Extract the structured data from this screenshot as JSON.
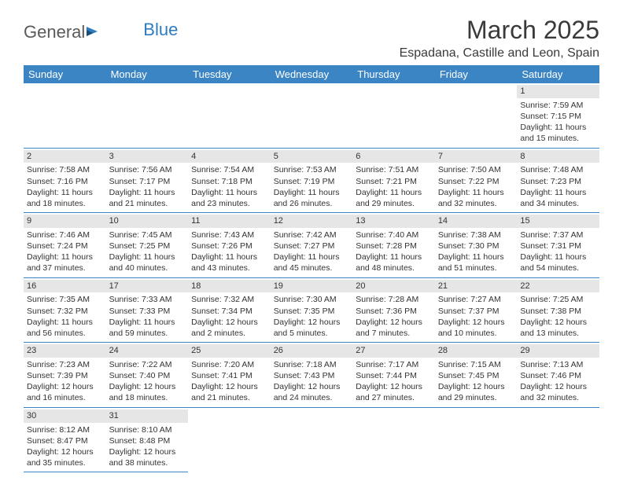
{
  "logo": {
    "text1": "General",
    "text2": "Blue"
  },
  "title": "March 2025",
  "location": "Espadana, Castille and Leon, Spain",
  "header_bg": "#3b85c4",
  "header_fg": "#ffffff",
  "daynum_bg": "#e6e6e6",
  "border_color": "#3b85c4",
  "text_color": "#333333",
  "font_size_title": 32,
  "font_size_location": 16,
  "font_size_header": 13,
  "font_size_cell": 10.5,
  "day_headers": [
    "Sunday",
    "Monday",
    "Tuesday",
    "Wednesday",
    "Thursday",
    "Friday",
    "Saturday"
  ],
  "weeks": [
    [
      {
        "empty": true
      },
      {
        "empty": true
      },
      {
        "empty": true
      },
      {
        "empty": true
      },
      {
        "empty": true
      },
      {
        "empty": true
      },
      {
        "day": "1",
        "sunrise": "Sunrise: 7:59 AM",
        "sunset": "Sunset: 7:15 PM",
        "dl1": "Daylight: 11 hours",
        "dl2": "and 15 minutes."
      }
    ],
    [
      {
        "day": "2",
        "sunrise": "Sunrise: 7:58 AM",
        "sunset": "Sunset: 7:16 PM",
        "dl1": "Daylight: 11 hours",
        "dl2": "and 18 minutes."
      },
      {
        "day": "3",
        "sunrise": "Sunrise: 7:56 AM",
        "sunset": "Sunset: 7:17 PM",
        "dl1": "Daylight: 11 hours",
        "dl2": "and 21 minutes."
      },
      {
        "day": "4",
        "sunrise": "Sunrise: 7:54 AM",
        "sunset": "Sunset: 7:18 PM",
        "dl1": "Daylight: 11 hours",
        "dl2": "and 23 minutes."
      },
      {
        "day": "5",
        "sunrise": "Sunrise: 7:53 AM",
        "sunset": "Sunset: 7:19 PM",
        "dl1": "Daylight: 11 hours",
        "dl2": "and 26 minutes."
      },
      {
        "day": "6",
        "sunrise": "Sunrise: 7:51 AM",
        "sunset": "Sunset: 7:21 PM",
        "dl1": "Daylight: 11 hours",
        "dl2": "and 29 minutes."
      },
      {
        "day": "7",
        "sunrise": "Sunrise: 7:50 AM",
        "sunset": "Sunset: 7:22 PM",
        "dl1": "Daylight: 11 hours",
        "dl2": "and 32 minutes."
      },
      {
        "day": "8",
        "sunrise": "Sunrise: 7:48 AM",
        "sunset": "Sunset: 7:23 PM",
        "dl1": "Daylight: 11 hours",
        "dl2": "and 34 minutes."
      }
    ],
    [
      {
        "day": "9",
        "sunrise": "Sunrise: 7:46 AM",
        "sunset": "Sunset: 7:24 PM",
        "dl1": "Daylight: 11 hours",
        "dl2": "and 37 minutes."
      },
      {
        "day": "10",
        "sunrise": "Sunrise: 7:45 AM",
        "sunset": "Sunset: 7:25 PM",
        "dl1": "Daylight: 11 hours",
        "dl2": "and 40 minutes."
      },
      {
        "day": "11",
        "sunrise": "Sunrise: 7:43 AM",
        "sunset": "Sunset: 7:26 PM",
        "dl1": "Daylight: 11 hours",
        "dl2": "and 43 minutes."
      },
      {
        "day": "12",
        "sunrise": "Sunrise: 7:42 AM",
        "sunset": "Sunset: 7:27 PM",
        "dl1": "Daylight: 11 hours",
        "dl2": "and 45 minutes."
      },
      {
        "day": "13",
        "sunrise": "Sunrise: 7:40 AM",
        "sunset": "Sunset: 7:28 PM",
        "dl1": "Daylight: 11 hours",
        "dl2": "and 48 minutes."
      },
      {
        "day": "14",
        "sunrise": "Sunrise: 7:38 AM",
        "sunset": "Sunset: 7:30 PM",
        "dl1": "Daylight: 11 hours",
        "dl2": "and 51 minutes."
      },
      {
        "day": "15",
        "sunrise": "Sunrise: 7:37 AM",
        "sunset": "Sunset: 7:31 PM",
        "dl1": "Daylight: 11 hours",
        "dl2": "and 54 minutes."
      }
    ],
    [
      {
        "day": "16",
        "sunrise": "Sunrise: 7:35 AM",
        "sunset": "Sunset: 7:32 PM",
        "dl1": "Daylight: 11 hours",
        "dl2": "and 56 minutes."
      },
      {
        "day": "17",
        "sunrise": "Sunrise: 7:33 AM",
        "sunset": "Sunset: 7:33 PM",
        "dl1": "Daylight: 11 hours",
        "dl2": "and 59 minutes."
      },
      {
        "day": "18",
        "sunrise": "Sunrise: 7:32 AM",
        "sunset": "Sunset: 7:34 PM",
        "dl1": "Daylight: 12 hours",
        "dl2": "and 2 minutes."
      },
      {
        "day": "19",
        "sunrise": "Sunrise: 7:30 AM",
        "sunset": "Sunset: 7:35 PM",
        "dl1": "Daylight: 12 hours",
        "dl2": "and 5 minutes."
      },
      {
        "day": "20",
        "sunrise": "Sunrise: 7:28 AM",
        "sunset": "Sunset: 7:36 PM",
        "dl1": "Daylight: 12 hours",
        "dl2": "and 7 minutes."
      },
      {
        "day": "21",
        "sunrise": "Sunrise: 7:27 AM",
        "sunset": "Sunset: 7:37 PM",
        "dl1": "Daylight: 12 hours",
        "dl2": "and 10 minutes."
      },
      {
        "day": "22",
        "sunrise": "Sunrise: 7:25 AM",
        "sunset": "Sunset: 7:38 PM",
        "dl1": "Daylight: 12 hours",
        "dl2": "and 13 minutes."
      }
    ],
    [
      {
        "day": "23",
        "sunrise": "Sunrise: 7:23 AM",
        "sunset": "Sunset: 7:39 PM",
        "dl1": "Daylight: 12 hours",
        "dl2": "and 16 minutes."
      },
      {
        "day": "24",
        "sunrise": "Sunrise: 7:22 AM",
        "sunset": "Sunset: 7:40 PM",
        "dl1": "Daylight: 12 hours",
        "dl2": "and 18 minutes."
      },
      {
        "day": "25",
        "sunrise": "Sunrise: 7:20 AM",
        "sunset": "Sunset: 7:41 PM",
        "dl1": "Daylight: 12 hours",
        "dl2": "and 21 minutes."
      },
      {
        "day": "26",
        "sunrise": "Sunrise: 7:18 AM",
        "sunset": "Sunset: 7:43 PM",
        "dl1": "Daylight: 12 hours",
        "dl2": "and 24 minutes."
      },
      {
        "day": "27",
        "sunrise": "Sunrise: 7:17 AM",
        "sunset": "Sunset: 7:44 PM",
        "dl1": "Daylight: 12 hours",
        "dl2": "and 27 minutes."
      },
      {
        "day": "28",
        "sunrise": "Sunrise: 7:15 AM",
        "sunset": "Sunset: 7:45 PM",
        "dl1": "Daylight: 12 hours",
        "dl2": "and 29 minutes."
      },
      {
        "day": "29",
        "sunrise": "Sunrise: 7:13 AM",
        "sunset": "Sunset: 7:46 PM",
        "dl1": "Daylight: 12 hours",
        "dl2": "and 32 minutes."
      }
    ],
    [
      {
        "day": "30",
        "sunrise": "Sunrise: 8:12 AM",
        "sunset": "Sunset: 8:47 PM",
        "dl1": "Daylight: 12 hours",
        "dl2": "and 35 minutes."
      },
      {
        "day": "31",
        "sunrise": "Sunrise: 8:10 AM",
        "sunset": "Sunset: 8:48 PM",
        "dl1": "Daylight: 12 hours",
        "dl2": "and 38 minutes."
      },
      {
        "empty": true
      },
      {
        "empty": true
      },
      {
        "empty": true
      },
      {
        "empty": true
      },
      {
        "empty": true
      }
    ]
  ]
}
